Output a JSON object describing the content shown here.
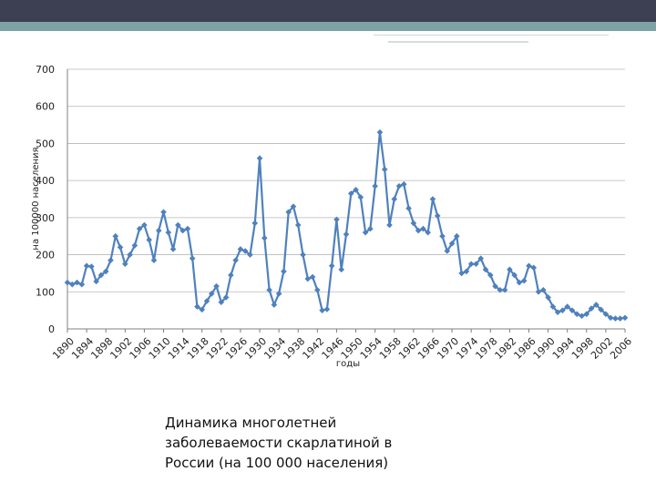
{
  "caption": {
    "lines": [
      "Динамика многолетней",
      "заболеваемости скарлатиной в",
      "России (на 100 000 населения)"
    ]
  },
  "chart_data": {
    "type": "line",
    "xlabel": "годы",
    "ylabel": "на 100000 населения",
    "ylim": [
      0,
      700
    ],
    "yticks": [
      0,
      100,
      200,
      300,
      400,
      500,
      600,
      700
    ],
    "xticks": [
      1890,
      1894,
      1898,
      1902,
      1906,
      1910,
      1914,
      1918,
      1922,
      1926,
      1930,
      1934,
      1938,
      1942,
      1946,
      1950,
      1954,
      1958,
      1962,
      1966,
      1970,
      1974,
      1978,
      1982,
      1986,
      1990,
      1994,
      1998,
      2002,
      2006
    ],
    "xlim": [
      1890,
      2006
    ],
    "grid": "horizontal",
    "legend": "none",
    "marker": "diamond",
    "color": "#4f81bd",
    "series": [
      {
        "x": [
          1890,
          1891,
          1892,
          1893,
          1894,
          1895,
          1896,
          1897,
          1898,
          1899,
          1900,
          1901,
          1902,
          1903,
          1904,
          1905,
          1906,
          1907,
          1908,
          1909,
          1910,
          1911,
          1912,
          1913,
          1914,
          1915,
          1916,
          1917,
          1918,
          1919,
          1920,
          1921,
          1922,
          1923,
          1924,
          1925,
          1926,
          1927,
          1928,
          1929,
          1930,
          1931,
          1932,
          1933,
          1934,
          1935,
          1936,
          1937,
          1938,
          1939,
          1940,
          1941,
          1942,
          1943,
          1944,
          1945,
          1946,
          1947,
          1948,
          1949,
          1950,
          1951,
          1952,
          1953,
          1954,
          1955,
          1956,
          1957,
          1958,
          1959,
          1960,
          1961,
          1962,
          1963,
          1964,
          1965,
          1966,
          1967,
          1968,
          1969,
          1970,
          1971,
          1972,
          1973,
          1974,
          1975,
          1976,
          1977,
          1978,
          1979,
          1980,
          1981,
          1982,
          1983,
          1984,
          1985,
          1986,
          1987,
          1988,
          1989,
          1990,
          1991,
          1992,
          1993,
          1994,
          1995,
          1996,
          1997,
          1998,
          1999,
          2000,
          2001,
          2002,
          2003,
          2004,
          2005,
          2006
        ],
        "values": [
          125,
          120,
          125,
          120,
          170,
          168,
          128,
          145,
          155,
          185,
          250,
          220,
          175,
          200,
          225,
          270,
          280,
          240,
          185,
          265,
          315,
          260,
          215,
          280,
          265,
          270,
          190,
          60,
          52,
          75,
          95,
          115,
          72,
          85,
          145,
          185,
          215,
          210,
          200,
          285,
          460,
          245,
          105,
          65,
          95,
          155,
          315,
          330,
          280,
          200,
          135,
          140,
          105,
          50,
          53,
          170,
          295,
          160,
          255,
          365,
          375,
          355,
          260,
          270,
          385,
          530,
          430,
          280,
          350,
          385,
          390,
          325,
          285,
          265,
          270,
          260,
          350,
          305,
          250,
          210,
          230,
          250,
          150,
          155,
          175,
          175,
          190,
          160,
          145,
          115,
          105,
          105,
          160,
          145,
          125,
          130,
          170,
          165,
          100,
          105,
          85,
          60,
          45,
          50,
          60,
          50,
          40,
          35,
          40,
          55,
          65,
          52,
          40,
          30,
          28,
          28,
          30
        ]
      }
    ]
  }
}
